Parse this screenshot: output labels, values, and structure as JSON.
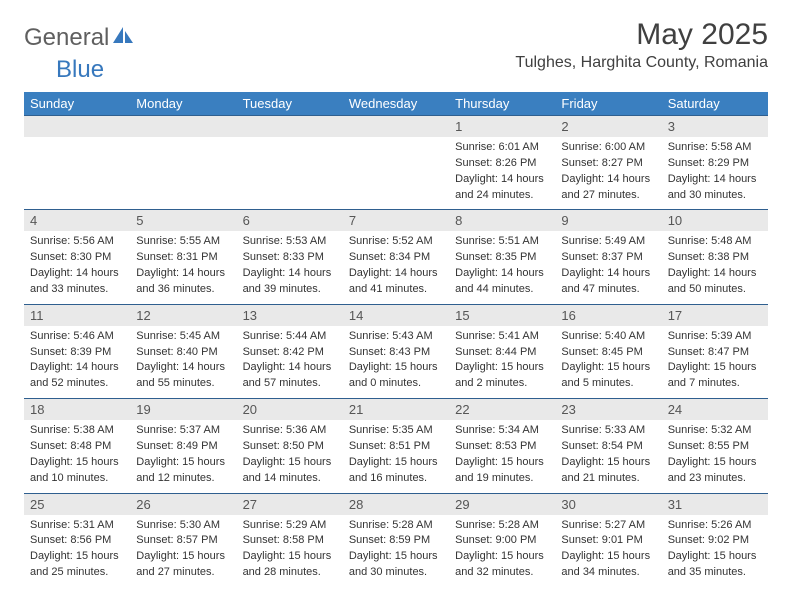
{
  "brand": {
    "general": "General",
    "blue": "Blue"
  },
  "title": "May 2025",
  "location": "Tulghes, Harghita County, Romania",
  "colors": {
    "header_bg": "#3a7fc0",
    "header_text": "#ffffff",
    "daynum_bg": "#e9e9e9",
    "daynum_text": "#565656",
    "border": "#2f5f8f",
    "body_text": "#333333",
    "title_text": "#404040",
    "logo_gray": "#5f5f5f",
    "logo_blue": "#3778bd"
  },
  "dayHeaders": [
    "Sunday",
    "Monday",
    "Tuesday",
    "Wednesday",
    "Thursday",
    "Friday",
    "Saturday"
  ],
  "weeks": [
    {
      "nums": [
        "",
        "",
        "",
        "",
        "1",
        "2",
        "3"
      ],
      "cells": [
        null,
        null,
        null,
        null,
        {
          "sunrise": "Sunrise: 6:01 AM",
          "sunset": "Sunset: 8:26 PM",
          "day1": "Daylight: 14 hours",
          "day2": "and 24 minutes."
        },
        {
          "sunrise": "Sunrise: 6:00 AM",
          "sunset": "Sunset: 8:27 PM",
          "day1": "Daylight: 14 hours",
          "day2": "and 27 minutes."
        },
        {
          "sunrise": "Sunrise: 5:58 AM",
          "sunset": "Sunset: 8:29 PM",
          "day1": "Daylight: 14 hours",
          "day2": "and 30 minutes."
        }
      ]
    },
    {
      "nums": [
        "4",
        "5",
        "6",
        "7",
        "8",
        "9",
        "10"
      ],
      "cells": [
        {
          "sunrise": "Sunrise: 5:56 AM",
          "sunset": "Sunset: 8:30 PM",
          "day1": "Daylight: 14 hours",
          "day2": "and 33 minutes."
        },
        {
          "sunrise": "Sunrise: 5:55 AM",
          "sunset": "Sunset: 8:31 PM",
          "day1": "Daylight: 14 hours",
          "day2": "and 36 minutes."
        },
        {
          "sunrise": "Sunrise: 5:53 AM",
          "sunset": "Sunset: 8:33 PM",
          "day1": "Daylight: 14 hours",
          "day2": "and 39 minutes."
        },
        {
          "sunrise": "Sunrise: 5:52 AM",
          "sunset": "Sunset: 8:34 PM",
          "day1": "Daylight: 14 hours",
          "day2": "and 41 minutes."
        },
        {
          "sunrise": "Sunrise: 5:51 AM",
          "sunset": "Sunset: 8:35 PM",
          "day1": "Daylight: 14 hours",
          "day2": "and 44 minutes."
        },
        {
          "sunrise": "Sunrise: 5:49 AM",
          "sunset": "Sunset: 8:37 PM",
          "day1": "Daylight: 14 hours",
          "day2": "and 47 minutes."
        },
        {
          "sunrise": "Sunrise: 5:48 AM",
          "sunset": "Sunset: 8:38 PM",
          "day1": "Daylight: 14 hours",
          "day2": "and 50 minutes."
        }
      ]
    },
    {
      "nums": [
        "11",
        "12",
        "13",
        "14",
        "15",
        "16",
        "17"
      ],
      "cells": [
        {
          "sunrise": "Sunrise: 5:46 AM",
          "sunset": "Sunset: 8:39 PM",
          "day1": "Daylight: 14 hours",
          "day2": "and 52 minutes."
        },
        {
          "sunrise": "Sunrise: 5:45 AM",
          "sunset": "Sunset: 8:40 PM",
          "day1": "Daylight: 14 hours",
          "day2": "and 55 minutes."
        },
        {
          "sunrise": "Sunrise: 5:44 AM",
          "sunset": "Sunset: 8:42 PM",
          "day1": "Daylight: 14 hours",
          "day2": "and 57 minutes."
        },
        {
          "sunrise": "Sunrise: 5:43 AM",
          "sunset": "Sunset: 8:43 PM",
          "day1": "Daylight: 15 hours",
          "day2": "and 0 minutes."
        },
        {
          "sunrise": "Sunrise: 5:41 AM",
          "sunset": "Sunset: 8:44 PM",
          "day1": "Daylight: 15 hours",
          "day2": "and 2 minutes."
        },
        {
          "sunrise": "Sunrise: 5:40 AM",
          "sunset": "Sunset: 8:45 PM",
          "day1": "Daylight: 15 hours",
          "day2": "and 5 minutes."
        },
        {
          "sunrise": "Sunrise: 5:39 AM",
          "sunset": "Sunset: 8:47 PM",
          "day1": "Daylight: 15 hours",
          "day2": "and 7 minutes."
        }
      ]
    },
    {
      "nums": [
        "18",
        "19",
        "20",
        "21",
        "22",
        "23",
        "24"
      ],
      "cells": [
        {
          "sunrise": "Sunrise: 5:38 AM",
          "sunset": "Sunset: 8:48 PM",
          "day1": "Daylight: 15 hours",
          "day2": "and 10 minutes."
        },
        {
          "sunrise": "Sunrise: 5:37 AM",
          "sunset": "Sunset: 8:49 PM",
          "day1": "Daylight: 15 hours",
          "day2": "and 12 minutes."
        },
        {
          "sunrise": "Sunrise: 5:36 AM",
          "sunset": "Sunset: 8:50 PM",
          "day1": "Daylight: 15 hours",
          "day2": "and 14 minutes."
        },
        {
          "sunrise": "Sunrise: 5:35 AM",
          "sunset": "Sunset: 8:51 PM",
          "day1": "Daylight: 15 hours",
          "day2": "and 16 minutes."
        },
        {
          "sunrise": "Sunrise: 5:34 AM",
          "sunset": "Sunset: 8:53 PM",
          "day1": "Daylight: 15 hours",
          "day2": "and 19 minutes."
        },
        {
          "sunrise": "Sunrise: 5:33 AM",
          "sunset": "Sunset: 8:54 PM",
          "day1": "Daylight: 15 hours",
          "day2": "and 21 minutes."
        },
        {
          "sunrise": "Sunrise: 5:32 AM",
          "sunset": "Sunset: 8:55 PM",
          "day1": "Daylight: 15 hours",
          "day2": "and 23 minutes."
        }
      ]
    },
    {
      "nums": [
        "25",
        "26",
        "27",
        "28",
        "29",
        "30",
        "31"
      ],
      "cells": [
        {
          "sunrise": "Sunrise: 5:31 AM",
          "sunset": "Sunset: 8:56 PM",
          "day1": "Daylight: 15 hours",
          "day2": "and 25 minutes."
        },
        {
          "sunrise": "Sunrise: 5:30 AM",
          "sunset": "Sunset: 8:57 PM",
          "day1": "Daylight: 15 hours",
          "day2": "and 27 minutes."
        },
        {
          "sunrise": "Sunrise: 5:29 AM",
          "sunset": "Sunset: 8:58 PM",
          "day1": "Daylight: 15 hours",
          "day2": "and 28 minutes."
        },
        {
          "sunrise": "Sunrise: 5:28 AM",
          "sunset": "Sunset: 8:59 PM",
          "day1": "Daylight: 15 hours",
          "day2": "and 30 minutes."
        },
        {
          "sunrise": "Sunrise: 5:28 AM",
          "sunset": "Sunset: 9:00 PM",
          "day1": "Daylight: 15 hours",
          "day2": "and 32 minutes."
        },
        {
          "sunrise": "Sunrise: 5:27 AM",
          "sunset": "Sunset: 9:01 PM",
          "day1": "Daylight: 15 hours",
          "day2": "and 34 minutes."
        },
        {
          "sunrise": "Sunrise: 5:26 AM",
          "sunset": "Sunset: 9:02 PM",
          "day1": "Daylight: 15 hours",
          "day2": "and 35 minutes."
        }
      ]
    }
  ]
}
